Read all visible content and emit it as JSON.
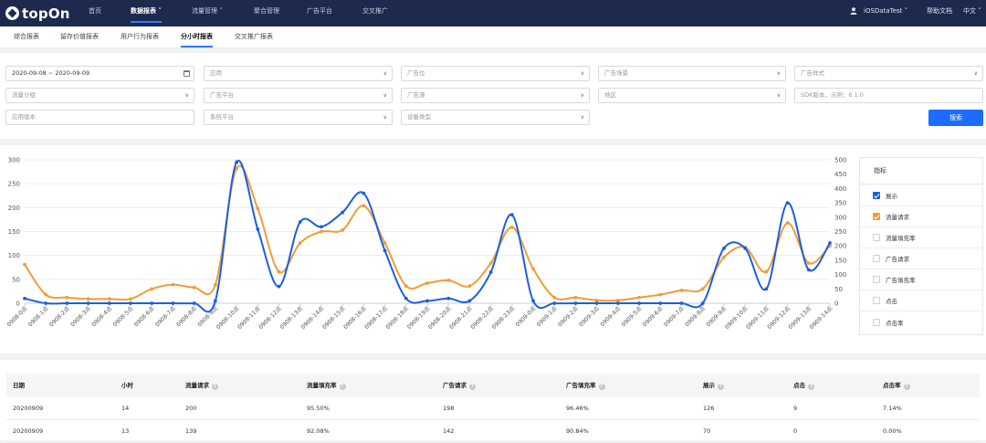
{
  "app": {
    "logo_text": "topOn"
  },
  "nav": {
    "items": [
      {
        "label": "首页"
      },
      {
        "label": "数据报表 ˅"
      },
      {
        "label": "流量管理 ˅"
      },
      {
        "label": "聚合管理"
      },
      {
        "label": "广告平台"
      },
      {
        "label": "交叉推广"
      }
    ],
    "user": "iOSDataTest ˅",
    "help": "帮助文档",
    "lang": "中文 ˅"
  },
  "subtabs": [
    "综合报表",
    "留存价值报表",
    "用户行为报表",
    "分小时报表",
    "交叉推广报表"
  ],
  "filters": {
    "date_range": "2020-09-08 ~ 2020-09-09",
    "app": "应用",
    "placement": "广告位",
    "scenario": "广告场景",
    "ad_style": "广告样式",
    "traffic_group": "流量分组",
    "ad_platform": "广告平台",
    "ad_source": "广告源",
    "region": "地区",
    "sdk_placeholder": "SDK版本，示例：6.1.0",
    "app_version": "应用版本",
    "os": "系统平台",
    "device_type": "设备类型",
    "search_button": "搜索"
  },
  "metrics": {
    "title": "指标",
    "items": [
      {
        "label": "展示",
        "checked": true,
        "color": "#1a5fe0"
      },
      {
        "label": "流量请求",
        "checked": true,
        "color": "#f29c38"
      },
      {
        "label": "流量填充率",
        "checked": false
      },
      {
        "label": "广告请求",
        "checked": false
      },
      {
        "label": "广告填充率",
        "checked": false
      },
      {
        "label": "点击",
        "checked": false
      },
      {
        "label": "点击率",
        "checked": false
      }
    ]
  },
  "chart_data": {
    "type": "line",
    "categories": [
      "0908-0点",
      "0908-1点",
      "0908-2点",
      "0908-3点",
      "0908-4点",
      "0908-5点",
      "0908-6点",
      "0908-7点",
      "0908-8点",
      "0908-9点",
      "0908-10点",
      "0908-11点",
      "0908-12点",
      "0908-13点",
      "0908-14点",
      "0908-15点",
      "0908-16点",
      "0908-17点",
      "0908-18点",
      "0908-19点",
      "0908-20点",
      "0908-21点",
      "0908-22点",
      "0908-23点",
      "0909-0点",
      "0909-1点",
      "0909-2点",
      "0909-3点",
      "0909-4点",
      "0909-5点",
      "0909-6点",
      "0909-7点",
      "0909-8点",
      "0909-9点",
      "0909-10点",
      "0909-11点",
      "0909-12点",
      "0909-13点",
      "0909-14点"
    ],
    "series": [
      {
        "name": "展示",
        "axis": "left",
        "color": "#1a5fe0",
        "values": [
          10,
          0,
          0,
          0,
          0,
          0,
          0,
          0,
          0,
          5,
          295,
          155,
          35,
          170,
          160,
          190,
          230,
          110,
          10,
          5,
          10,
          5,
          65,
          185,
          5,
          0,
          0,
          0,
          0,
          0,
          0,
          0,
          0,
          115,
          115,
          30,
          210,
          70,
          126
        ]
      },
      {
        "name": "流量请求",
        "axis": "right",
        "color": "#f29c38",
        "values": [
          135,
          30,
          20,
          15,
          15,
          15,
          50,
          65,
          55,
          65,
          470,
          330,
          110,
          210,
          250,
          255,
          340,
          210,
          60,
          70,
          80,
          60,
          140,
          265,
          120,
          20,
          20,
          10,
          10,
          20,
          30,
          45,
          50,
          160,
          195,
          110,
          280,
          140,
          200
        ]
      }
    ],
    "ylim_left": [
      0,
      300
    ],
    "yticks_left": [
      0,
      50,
      100,
      150,
      200,
      250,
      300
    ],
    "ylim_right": [
      0,
      500
    ],
    "yticks_right": [
      0,
      50,
      100,
      150,
      200,
      250,
      300,
      350,
      400,
      450,
      500
    ],
    "grid": true
  },
  "table": {
    "columns": [
      {
        "label": "日期",
        "help": false
      },
      {
        "label": "小时",
        "help": false
      },
      {
        "label": "流量请求",
        "help": true
      },
      {
        "label": "流量填充率",
        "help": true
      },
      {
        "label": "广告请求",
        "help": true
      },
      {
        "label": "广告填充率",
        "help": true
      },
      {
        "label": "展示",
        "help": true
      },
      {
        "label": "点击",
        "help": true
      },
      {
        "label": "点击率",
        "help": true
      }
    ],
    "rows": [
      [
        "20200909",
        "14",
        "200",
        "95.50%",
        "198",
        "96.46%",
        "126",
        "9",
        "7.14%"
      ],
      [
        "20200909",
        "13",
        "139",
        "92.08%",
        "142",
        "90.84%",
        "70",
        "0",
        "0.00%"
      ]
    ]
  }
}
